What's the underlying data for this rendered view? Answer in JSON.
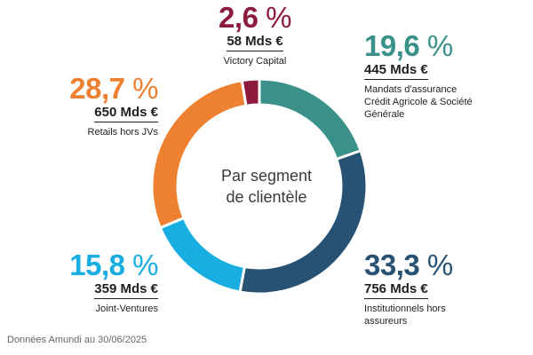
{
  "chart_data": {
    "type": "pie",
    "title": "",
    "center_label": [
      "Par segment",
      "de clientèle"
    ],
    "segments": [
      {
        "percent_text": "19,6",
        "value": 19.6,
        "amount": "445 Mds €",
        "label": "Mandats d'assurance Crédit Agricole & Société Générale",
        "color": "#3a9189"
      },
      {
        "percent_text": "33,3",
        "value": 33.3,
        "amount": "756 Mds €",
        "label": "Institutionnels hors assureurs",
        "color": "#285273"
      },
      {
        "percent_text": "15,8",
        "value": 15.8,
        "amount": "359 Mds €",
        "label": "Joint-Ventures",
        "color": "#19aee2"
      },
      {
        "percent_text": "28,7",
        "value": 28.7,
        "amount": "650 Mds €",
        "label": "Retails hors JVs",
        "color": "#ee8131"
      },
      {
        "percent_text": "2,6",
        "value": 2.6,
        "amount": "58 Mds €",
        "label": "Victory Capital",
        "color": "#8d1b3d"
      }
    ],
    "percent_symbol": "%"
  },
  "footnote": "Données Amundi au 30/06/2025"
}
